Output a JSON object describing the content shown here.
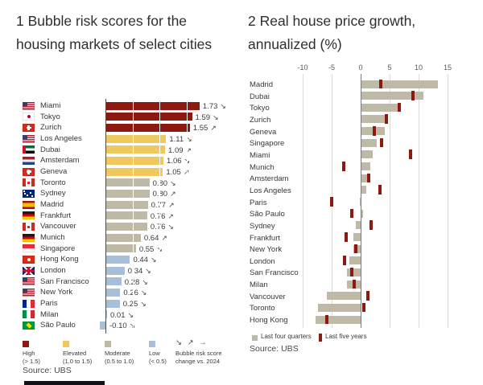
{
  "chart_data": [
    {
      "type": "bar",
      "orientation": "horizontal",
      "title": "1 Bubble risk scores for the housing markets of select cities",
      "xlim": [
        -0.25,
        2.0
      ],
      "gridlines": [
        0.5,
        1.0,
        1.5
      ],
      "categories": [
        "Miami",
        "Tokyo",
        "Zurich",
        "Los Angeles",
        "Dubai",
        "Amsterdam",
        "Geneva",
        "Toronto",
        "Sydney",
        "Madrid",
        "Frankfurt",
        "Vancouver",
        "Munich",
        "Singapore",
        "Hong Kong",
        "London",
        "San Francisco",
        "New York",
        "Paris",
        "Milan",
        "São Paulo"
      ],
      "values": [
        1.73,
        1.59,
        1.55,
        1.11,
        1.09,
        1.06,
        1.05,
        0.8,
        0.8,
        0.77,
        0.76,
        0.76,
        0.64,
        0.55,
        0.44,
        0.34,
        0.28,
        0.26,
        0.25,
        0.01,
        -0.1
      ],
      "change_vs_2024": [
        "down",
        "down",
        "up",
        "down",
        "up",
        "down",
        "up",
        "down",
        "up",
        "up",
        "up",
        "down",
        "up",
        "down",
        "down",
        "down",
        "down",
        "down",
        "down",
        "down",
        "down"
      ],
      "risk_categories": [
        "high",
        "high",
        "high",
        "elevated",
        "elevated",
        "elevated",
        "elevated",
        "moderate",
        "moderate",
        "moderate",
        "moderate",
        "moderate",
        "moderate",
        "moderate",
        "low",
        "low",
        "low",
        "low",
        "low",
        "low",
        "low"
      ],
      "flags": [
        "us",
        "jp",
        "ch",
        "us",
        "ae",
        "nl",
        "ch",
        "ca",
        "au",
        "es",
        "de",
        "ca",
        "de",
        "sg",
        "hk",
        "gb",
        "us",
        "us",
        "fr",
        "it",
        "br"
      ],
      "legend": [
        {
          "key": "high",
          "label": "High",
          "range": "(> 1.5)",
          "color": "#8c1a10"
        },
        {
          "key": "elevated",
          "label": "Elevated",
          "range": "(1.0 to 1.5)",
          "color": "#f0c95e"
        },
        {
          "key": "moderate",
          "label": "Moderate",
          "range": "(0.5 to 1.0)",
          "color": "#bfb9a8"
        },
        {
          "key": "low",
          "label": "Low",
          "range": "(< 0.5)",
          "color": "#a9bed9"
        }
      ],
      "arrow_legend": {
        "symbols": "↘ ↗ →",
        "label": "Bubble risk score change vs. 2024"
      },
      "source": "Source: UBS"
    },
    {
      "type": "bar",
      "orientation": "horizontal",
      "title": "2 Real house price growth, annualized (%)",
      "xlim": [
        -10,
        15
      ],
      "axis_ticks": [
        -10,
        -5,
        0,
        5,
        10,
        15
      ],
      "categories": [
        "Madrid",
        "Dubai",
        "Tokyo",
        "Zurich",
        "Geneva",
        "Singapore",
        "Miami",
        "Munich",
        "Amsterdam",
        "Los Angeles",
        "Paris",
        "São Paulo",
        "Sydney",
        "Frankfurt",
        "New York",
        "London",
        "San Francisco",
        "Milan",
        "Vancouver",
        "Toronto",
        "Hong Kong"
      ],
      "series": [
        {
          "name": "Last four quarters",
          "color": "#bfb9a8",
          "values": [
            13.2,
            10.7,
            6.2,
            4.6,
            4.0,
            2.6,
            1.9,
            1.5,
            1.2,
            0.8,
            -0.2,
            0.3,
            -0.8,
            -1.2,
            -1.2,
            -2.0,
            -2.3,
            -2.4,
            -5.8,
            -7.3,
            -7.8
          ]
        },
        {
          "name": "Last five years",
          "color": "#8c1a10",
          "values": [
            3.5,
            9.0,
            6.6,
            4.4,
            2.3,
            3.6,
            8.6,
            -2.9,
            1.4,
            3.4,
            -5.0,
            -1.5,
            1.8,
            -2.5,
            -0.9,
            -2.8,
            -1.5,
            -1.1,
            1.3,
            0.5,
            -5.8
          ]
        }
      ],
      "legend_position": "bottom",
      "source": "Source: UBS"
    }
  ],
  "trend_glyphs": {
    "down": "↘",
    "up": "↗"
  }
}
